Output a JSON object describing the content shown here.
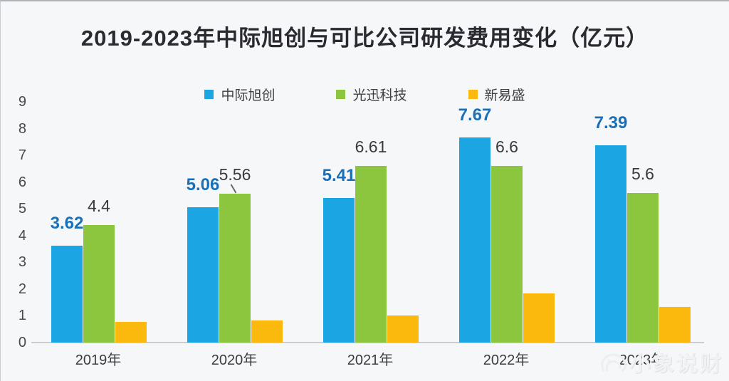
{
  "chart_data": {
    "type": "bar",
    "title": "2019-2023年中际旭创与可比公司研发费用变化（亿元）",
    "categories": [
      "2019年",
      "2020年",
      "2021年",
      "2022年",
      "2023年"
    ],
    "series": [
      {
        "name": "中际旭创",
        "color": "#1ba6e3",
        "label_color": "#1a70b8",
        "values": [
          3.62,
          5.06,
          5.41,
          7.67,
          7.39
        ],
        "labels": [
          "3.62",
          "5.06",
          "5.41",
          "7.67",
          "7.39"
        ]
      },
      {
        "name": "光迅科技",
        "color": "#8cc63f",
        "label_color": "#3a3a3d",
        "values": [
          4.4,
          5.56,
          6.61,
          6.6,
          5.6
        ],
        "labels": [
          "4.4",
          "5.56",
          "6.61",
          "6.6",
          "5.6"
        ]
      },
      {
        "name": "新易盛",
        "color": "#fbb90d",
        "label_color": null,
        "values": [
          0.78,
          0.83,
          1.02,
          1.85,
          1.33
        ],
        "labels": null
      }
    ],
    "ylim": [
      0,
      9
    ],
    "yticks": [
      0,
      1,
      2,
      3,
      4,
      5,
      6,
      7,
      8,
      9
    ],
    "grid": false,
    "legend_position": "top",
    "annotations": {
      "leader_line": {
        "series": 1,
        "category_index": 1
      }
    }
  },
  "watermark": {
    "icon": "elephant-icon",
    "text": "小象说财"
  }
}
